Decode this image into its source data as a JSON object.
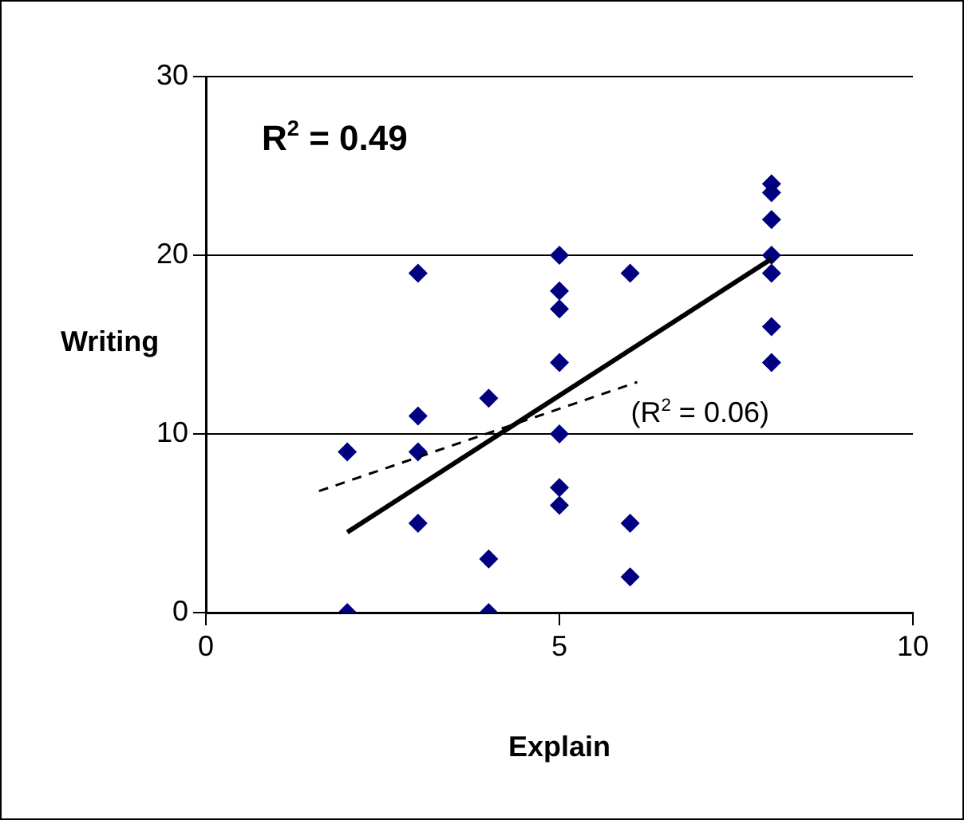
{
  "chart_data": {
    "type": "scatter",
    "xlabel": "Explain",
    "ylabel": "Writing",
    "xlim": [
      0,
      10
    ],
    "xticks": [
      0,
      5,
      10
    ],
    "ylim": [
      0,
      30
    ],
    "yticks": [
      0,
      10,
      20,
      30
    ],
    "grid": "y",
    "legend": false,
    "marker": "diamond",
    "series": [
      {
        "color": "#000080",
        "x": [
          2,
          2,
          3,
          3,
          3,
          3,
          4,
          4,
          4,
          5,
          5,
          5,
          5,
          5,
          5,
          5,
          6,
          6,
          6,
          8,
          8,
          8,
          8,
          8,
          8,
          8
        ],
        "values": [
          9,
          0,
          19,
          11,
          9,
          5,
          12,
          3,
          0,
          20,
          18,
          17,
          14,
          10,
          7,
          6,
          19,
          5,
          2,
          24,
          23.5,
          22,
          20,
          19,
          16,
          14
        ]
      },
      {
        "type": "line",
        "color": "#000000",
        "line_style": "solid",
        "marker": "none",
        "x": [
          2,
          8
        ],
        "values": [
          4.5,
          19.8
        ]
      },
      {
        "type": "line",
        "color": "#000000",
        "line_style": "dashed",
        "marker": "none",
        "x": [
          1.6,
          6.1
        ],
        "values": [
          6.8,
          12.9
        ]
      }
    ],
    "annotations": [
      "R$^{2}$ = 0.49",
      {
        "text": "(R$^{2}$ = 0.06)",
        "x": 6.1,
        "y": 12.9
      }
    ]
  }
}
